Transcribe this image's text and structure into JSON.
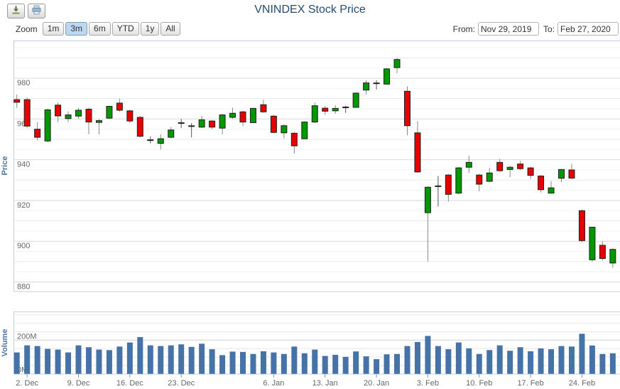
{
  "header": {
    "title": "VNINDEX Stock Price"
  },
  "toolbar": {
    "export_buttons": [
      {
        "name": "download",
        "icon": "download-icon"
      },
      {
        "name": "print",
        "icon": "print-icon"
      }
    ],
    "zoom_label": "Zoom",
    "ranges": [
      "1m",
      "3m",
      "6m",
      "YTD",
      "1y",
      "All"
    ],
    "active_range": "3m",
    "from_label": "From:",
    "from_value": "Nov 29, 2019",
    "to_label": "To:",
    "to_value": "Feb 27, 2020"
  },
  "chart_data": {
    "type": "candlestick",
    "title": "VNINDEX Stock Price",
    "legend": "off",
    "grid": "on",
    "price_axis": {
      "title": "Price",
      "tick_labels": [
        880,
        900,
        920,
        940,
        960,
        980
      ],
      "range": [
        875,
        998
      ],
      "minor_grid_step": 5
    },
    "volume_axis": {
      "title": "Volume",
      "tick_labels": [
        {
          "value": 0,
          "label": "0M"
        },
        {
          "value": 200,
          "label": "200M"
        }
      ],
      "range_millions": [
        0,
        370
      ],
      "grid_step_millions": 50
    },
    "x_axis": {
      "from": "Nov 29, 2019",
      "to": "Feb 27, 2020",
      "tick_labels": [
        {
          "index": 1,
          "label": "2. Dec"
        },
        {
          "index": 6,
          "label": "9. Dec"
        },
        {
          "index": 11,
          "label": "16. Dec"
        },
        {
          "index": 16,
          "label": "23. Dec"
        },
        {
          "index": 25,
          "label": "6. Jan"
        },
        {
          "index": 30,
          "label": "13. Jan"
        },
        {
          "index": 35,
          "label": "20. Jan"
        },
        {
          "index": 40,
          "label": "3. Feb"
        },
        {
          "index": 45,
          "label": "10. Feb"
        },
        {
          "index": 50,
          "label": "17. Feb"
        },
        {
          "index": 55,
          "label": "24. Feb"
        }
      ]
    },
    "columns": [
      "date",
      "open",
      "high",
      "low",
      "close",
      "volume_millions"
    ],
    "rows": [
      [
        "Nov 29",
        969.5,
        972,
        965.5,
        968.2,
        127
      ],
      [
        "Dec 2",
        969.5,
        970.5,
        955.5,
        956.5,
        169
      ],
      [
        "Dec 3",
        955,
        958.5,
        949.5,
        951,
        165
      ],
      [
        "Dec 4",
        949.2,
        965,
        948.5,
        964.5,
        148
      ],
      [
        "Dec 5",
        966.8,
        968,
        958.5,
        961.5,
        144
      ],
      [
        "Dec 6",
        960.2,
        963.7,
        958.5,
        962,
        127
      ],
      [
        "Dec 9",
        961.4,
        965.5,
        960,
        964.3,
        169
      ],
      [
        "Dec 10",
        964.8,
        965.5,
        952.5,
        958.5,
        158
      ],
      [
        "Dec 11",
        958.3,
        960,
        952.5,
        959.2,
        144
      ],
      [
        "Dec 12",
        960.4,
        966.5,
        960,
        966.2,
        141
      ],
      [
        "Dec 13",
        967.8,
        970,
        963.5,
        964.3,
        162
      ],
      [
        "Dec 16",
        964,
        964.5,
        958,
        959,
        186
      ],
      [
        "Dec 17",
        960.8,
        961.5,
        951,
        951.5,
        218
      ],
      [
        "Dec 18",
        949.6,
        951.5,
        948,
        949.4,
        169
      ],
      [
        "Dec 19",
        948,
        952.5,
        945,
        950.3,
        165
      ],
      [
        "Dec 20",
        951,
        956,
        950.5,
        954.6,
        169
      ],
      [
        "Dec 23",
        958,
        960,
        955.5,
        958.2,
        175
      ],
      [
        "Dec 24",
        956.5,
        958,
        951,
        956.8,
        160
      ],
      [
        "Dec 25",
        956,
        961.5,
        955.5,
        959.6,
        179
      ],
      [
        "Dec 26",
        959,
        959.5,
        955,
        956,
        146
      ],
      [
        "Dec 27",
        955.5,
        962.5,
        952.5,
        962,
        111
      ],
      [
        "Dec 30",
        960.8,
        965.5,
        960,
        962.8,
        132
      ],
      [
        "Dec 31",
        963.5,
        964,
        956.5,
        958.5,
        130
      ],
      [
        "Jan 2",
        958.2,
        965.5,
        958,
        965.2,
        118
      ],
      [
        "Jan 3",
        967,
        969.5,
        963,
        963.5,
        134
      ],
      [
        "Jan 6",
        961.4,
        962,
        953,
        953.4,
        127
      ],
      [
        "Jan 7",
        953.2,
        957.5,
        950.5,
        956.7,
        118
      ],
      [
        "Jan 8",
        953,
        953.5,
        943,
        946.8,
        162
      ],
      [
        "Jan 9",
        950.3,
        959,
        950,
        958.5,
        122
      ],
      [
        "Jan 10",
        958.5,
        968,
        958,
        966.5,
        144
      ],
      [
        "Jan 13",
        965.3,
        966.5,
        962,
        963.8,
        106
      ],
      [
        "Jan 14",
        964,
        966.8,
        962.5,
        965.2,
        113
      ],
      [
        "Jan 15",
        965.7,
        966.5,
        963,
        965.5,
        101
      ],
      [
        "Jan 16",
        965.7,
        973,
        965.5,
        972.7,
        133
      ],
      [
        "Jan 17",
        974.2,
        979,
        972,
        977.7,
        104
      ],
      [
        "Jan 20",
        977.5,
        979,
        974.5,
        977.1,
        87
      ],
      [
        "Jan 21",
        977.1,
        985,
        977,
        984.6,
        116
      ],
      [
        "Jan 22",
        985.2,
        990,
        982.5,
        989.2,
        118
      ],
      [
        "Jan 30",
        973.6,
        976,
        952,
        956.7,
        165
      ],
      [
        "Jan 31",
        953.2,
        959,
        933.5,
        934,
        189
      ],
      [
        "Feb 3",
        914,
        927,
        890,
        926.5,
        225
      ],
      [
        "Feb 4",
        927,
        932,
        917,
        926.8,
        165
      ],
      [
        "Feb 5",
        932.5,
        933,
        919.5,
        923,
        146
      ],
      [
        "Feb 6",
        923.6,
        936.5,
        923,
        936,
        186
      ],
      [
        "Feb 7",
        936.3,
        942,
        933.5,
        938.7,
        151
      ],
      [
        "Feb 10",
        932.5,
        933,
        924.5,
        928,
        118
      ],
      [
        "Feb 11",
        929.4,
        936,
        929,
        933.5,
        141
      ],
      [
        "Feb 12",
        938.7,
        940.5,
        934,
        934.6,
        169
      ],
      [
        "Feb 13",
        935.2,
        937,
        931.5,
        936.3,
        137
      ],
      [
        "Feb 14",
        937.9,
        939.5,
        935,
        935.6,
        158
      ],
      [
        "Feb 17",
        936,
        936.5,
        930.5,
        932.3,
        134
      ],
      [
        "Feb 18",
        932,
        932.5,
        924,
        925.3,
        151
      ],
      [
        "Feb 19",
        923.6,
        929.5,
        923.5,
        926.2,
        146
      ],
      [
        "Feb 20",
        930.9,
        935.5,
        929,
        935.2,
        165
      ],
      [
        "Feb 21",
        935,
        938,
        930.5,
        931,
        162
      ],
      [
        "Feb 24",
        915,
        915.5,
        899.5,
        900.3,
        238
      ],
      [
        "Feb 25",
        890.9,
        907,
        890,
        906.9,
        168
      ],
      [
        "Feb 26",
        898,
        900,
        890.5,
        891.5,
        118
      ],
      [
        "Feb 27",
        889.3,
        896.5,
        887,
        896,
        122
      ]
    ],
    "colors": {
      "up": "#009700",
      "down": "#e60000",
      "doji": "#222222",
      "wick": "#888888",
      "volume_bar": "#4572a7",
      "pane_border": "#c0d0e0",
      "grid_minor": "#f2f2f2",
      "grid": "#e8e8e8",
      "grid_major": "#d9d9d9",
      "axis_title": "#4d759e",
      "tick_label": "#666666",
      "title": "#274b6d"
    }
  }
}
